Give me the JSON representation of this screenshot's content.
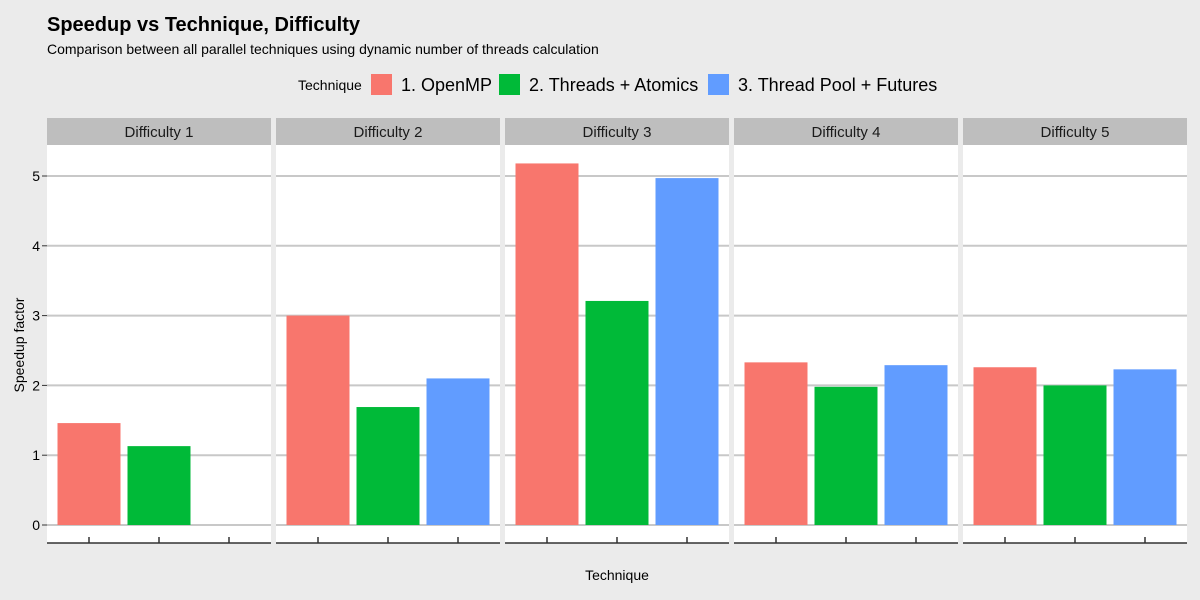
{
  "chart_data": {
    "type": "bar",
    "title": "Speedup vs Technique, Difficulty",
    "subtitle": "Comparison between all parallel techniques using dynamic number of threads calculation",
    "xlabel": "Technique",
    "ylabel": "Speedup factor",
    "legend_title": "Technique",
    "legend_position": "top",
    "grid": true,
    "ylim": [
      0,
      5.5
    ],
    "yticks": [
      0,
      1,
      2,
      3,
      4,
      5
    ],
    "categories": [
      "1. OpenMP",
      "2. Threads + Atomics",
      "3. Thread Pool + Futures"
    ],
    "facets": [
      "Difficulty 1",
      "Difficulty 2",
      "Difficulty 3",
      "Difficulty 4",
      "Difficulty 5"
    ],
    "colors": [
      "#f8766d",
      "#00ba38",
      "#619cff"
    ],
    "series": [
      {
        "facet": "Difficulty 1",
        "values": [
          1.46,
          1.13,
          null
        ]
      },
      {
        "facet": "Difficulty 2",
        "values": [
          3.0,
          1.69,
          2.1
        ]
      },
      {
        "facet": "Difficulty 3",
        "values": [
          5.18,
          3.21,
          4.97
        ]
      },
      {
        "facet": "Difficulty 4",
        "values": [
          2.33,
          1.98,
          2.29
        ]
      },
      {
        "facet": "Difficulty 5",
        "values": [
          2.26,
          2.0,
          2.23
        ]
      }
    ]
  }
}
